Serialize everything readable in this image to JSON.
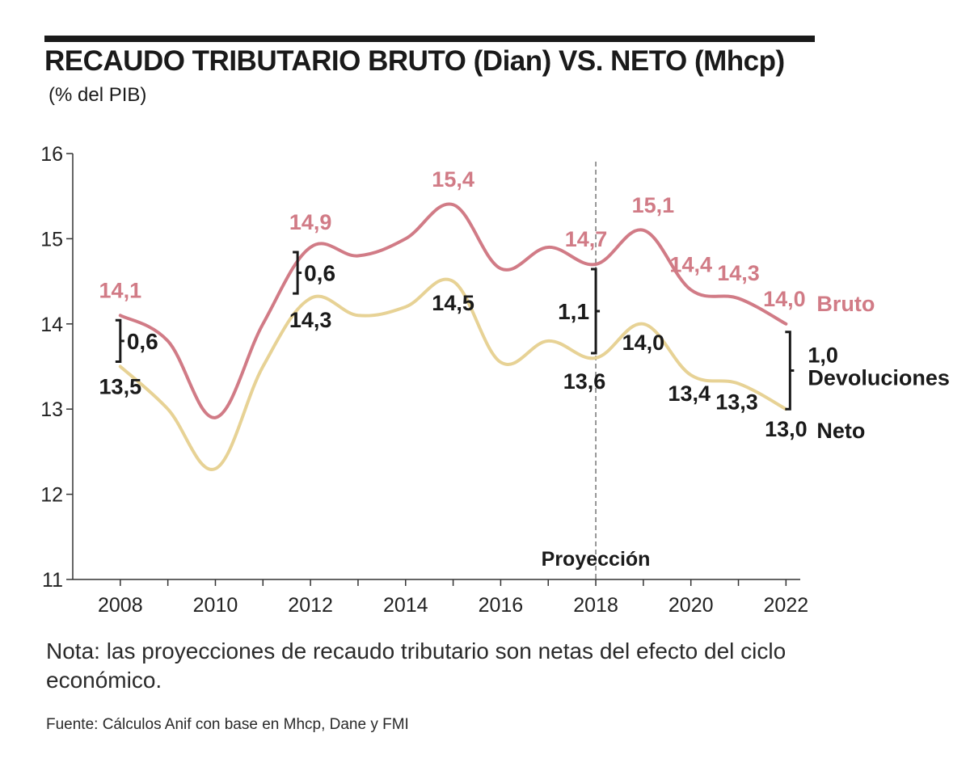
{
  "header": {
    "title": "RECAUDO TRIBUTARIO BRUTO (Dian) VS. NETO (Mhcp)",
    "subtitle": "(% del PIB)"
  },
  "footer": {
    "note": "Nota: las proyecciones de recaudo tributario son netas del efecto del ciclo económico.",
    "source": "Fuente: Cálculos Anif con base en Mhcp, Dane y FMI"
  },
  "colors": {
    "bruto": "#d17b86",
    "neto": "#e7d295",
    "axis": "#333333",
    "text": "#1a1a1a"
  },
  "chart_data": {
    "type": "line",
    "title": "RECAUDO TRIBUTARIO BRUTO (Dian) VS. NETO (Mhcp)",
    "ylabel": "% del PIB",
    "xlabel": "",
    "ylim": [
      11,
      16
    ],
    "xlim": [
      2007.0,
      2022.3
    ],
    "yticks": [
      11,
      12,
      13,
      14,
      15,
      16
    ],
    "xticks": [
      2008,
      2010,
      2012,
      2014,
      2016,
      2018,
      2020,
      2022
    ],
    "projection": {
      "x": 2018.0,
      "label": "Proyección"
    },
    "series": [
      {
        "name": "Bruto",
        "color": "#d17b86",
        "x": [
          2008,
          2009,
          2010,
          2011,
          2012,
          2013,
          2014,
          2015,
          2016,
          2017,
          2018,
          2019,
          2020,
          2021,
          2022
        ],
        "values": [
          14.1,
          13.8,
          12.9,
          14.0,
          14.9,
          14.8,
          15.0,
          15.4,
          14.65,
          14.9,
          14.7,
          15.1,
          14.4,
          14.3,
          14.0
        ],
        "labels": [
          {
            "x": 2008,
            "text": "14,1"
          },
          {
            "x": 2012,
            "text": "14,9"
          },
          {
            "x": 2015,
            "text": "15,4"
          },
          {
            "x": 2018,
            "text": "14,7"
          },
          {
            "x": 2019,
            "text": "15,1"
          },
          {
            "x": 2020,
            "text": "14,4"
          },
          {
            "x": 2021,
            "text": "14,3"
          },
          {
            "x": 2022,
            "text": "14,0"
          }
        ]
      },
      {
        "name": "Neto",
        "color": "#e7d295",
        "x": [
          2008,
          2009,
          2010,
          2011,
          2012,
          2013,
          2014,
          2015,
          2016,
          2017,
          2018,
          2019,
          2020,
          2021,
          2022
        ],
        "values": [
          13.5,
          13.0,
          12.3,
          13.5,
          14.3,
          14.1,
          14.2,
          14.5,
          13.55,
          13.8,
          13.6,
          14.0,
          13.4,
          13.3,
          13.0
        ],
        "labels": [
          {
            "x": 2008,
            "text": "13,5"
          },
          {
            "x": 2012,
            "text": "14,3"
          },
          {
            "x": 2015,
            "text": "14,5"
          },
          {
            "x": 2018,
            "text": "13,6"
          },
          {
            "x": 2019,
            "text": "14,0"
          },
          {
            "x": 2020,
            "text": "13,4"
          },
          {
            "x": 2021,
            "text": "13,3"
          },
          {
            "x": 2022,
            "text": "13,0"
          }
        ]
      }
    ],
    "gaps": [
      {
        "x": 2008,
        "from": 13.5,
        "to": 14.1,
        "text": "0,6"
      },
      {
        "x": 2012,
        "from": 14.3,
        "to": 14.9,
        "text": "0,6"
      },
      {
        "x": 2018,
        "from": 13.6,
        "to": 14.7,
        "text": "1,1"
      },
      {
        "x": 2022,
        "from": 13.0,
        "to": 14.0,
        "text": "1,0",
        "sub": "Devoluciones"
      }
    ]
  }
}
